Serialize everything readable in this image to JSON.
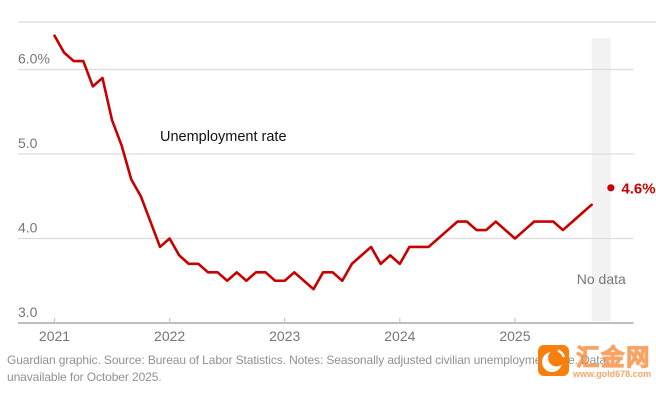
{
  "chart_data": {
    "type": "line",
    "title": "Unemployment rate",
    "series_name": "Unemployment rate",
    "unit": "percent",
    "x_tick_labels": [
      "2021",
      "2022",
      "2023",
      "2024",
      "2025"
    ],
    "y_ticks": [
      {
        "value": 6.0,
        "label": "6.0%"
      },
      {
        "value": 5.0,
        "label": "5.0"
      },
      {
        "value": 4.0,
        "label": "4.0"
      },
      {
        "value": 3.0,
        "label": "3.0"
      }
    ],
    "ylim": [
      3.0,
      6.56
    ],
    "grid": "horizontal-only",
    "values_by_year": {
      "2021": [
        6.4,
        6.2,
        6.1,
        6.1,
        5.8,
        5.9,
        5.4,
        5.1,
        4.7,
        4.5,
        4.2,
        3.9
      ],
      "2022": [
        4.0,
        3.8,
        3.7,
        3.7,
        3.6,
        3.6,
        3.5,
        3.6,
        3.5,
        3.6,
        3.6,
        3.5
      ],
      "2023": [
        3.5,
        3.6,
        3.5,
        3.4,
        3.6,
        3.6,
        3.5,
        3.7,
        3.8,
        3.9,
        3.7,
        3.8
      ],
      "2024": [
        3.7,
        3.9,
        3.9,
        3.9,
        4.0,
        4.1,
        4.2,
        4.2,
        4.1,
        4.1,
        4.2,
        4.1
      ],
      "2025": [
        4.0,
        4.1,
        4.2,
        4.2,
        4.2,
        4.1,
        4.2,
        4.3,
        4.4,
        null,
        4.6
      ]
    },
    "annotations": {
      "series_label": "Unemployment rate",
      "latest_point": {
        "label": "4.6%",
        "value": 4.6,
        "month": "Nov 2025"
      },
      "no_data_band": {
        "label": "No data",
        "month": "Oct 2025"
      }
    },
    "colors": {
      "line": "#c70000",
      "latest_label": "#c70000",
      "gridline": "#dcdcdc",
      "top_rule": "#d9d9d9",
      "axis_line": "#a8a8a8",
      "tick": "#c9c9c9",
      "tick_label": "#767676",
      "no_data_text": "#767676",
      "annotation_text": "#121212",
      "band_fill": "#f2f2f2",
      "background": "#ffffff"
    },
    "legend": "none"
  },
  "footer": {
    "caption_line1": "Guardian graphic. Source: Bureau of Labor Statistics. Notes: Seasonally adjusted civilian unemployment rate. Data",
    "caption_line2": "unavailable for October 2025."
  },
  "watermark": {
    "site_name": "汇金网",
    "url": "www.gold678.com",
    "icon_color": "#f87f0e"
  }
}
